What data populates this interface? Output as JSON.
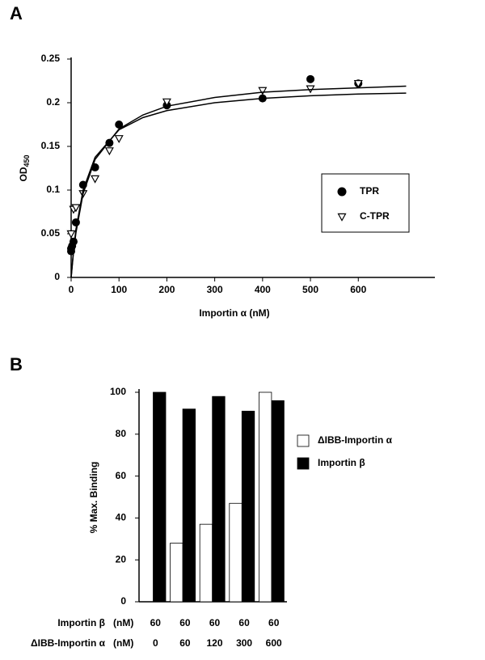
{
  "chart_data": [
    {
      "type": "scatter",
      "panel": "A",
      "xlabel": "Importin α  (nM)",
      "ylabel": "OD",
      "ylabel_sub": "450",
      "xlim": [
        0,
        760
      ],
      "ylim": [
        0,
        0.25
      ],
      "xticks": [
        0,
        100,
        200,
        300,
        400,
        500,
        600
      ],
      "yticks": [
        0,
        0.05,
        0.1,
        0.15,
        0.2,
        0.25
      ],
      "legend": "right",
      "series": [
        {
          "name": "TPR",
          "marker": "circle",
          "color": "#000000",
          "x": [
            0,
            0,
            2,
            5,
            10,
            25,
            50,
            80,
            100,
            200,
            400,
            500,
            600
          ],
          "values": [
            0.03,
            0.033,
            0.036,
            0.041,
            0.063,
            0.106,
            0.126,
            0.154,
            0.175,
            0.197,
            0.205,
            0.227,
            0.222
          ]
        },
        {
          "name": "C-TPR",
          "marker": "triangle",
          "color": "#000000",
          "x": [
            0,
            5,
            10,
            25,
            50,
            80,
            100,
            200,
            400,
            500,
            600
          ],
          "values": [
            0.05,
            0.078,
            0.08,
            0.096,
            0.113,
            0.145,
            0.159,
            0.201,
            0.214,
            0.216,
            0.222
          ]
        },
        {
          "marker": "line",
          "color": "#000000",
          "x": [
            0,
            5,
            10,
            25,
            50,
            100,
            150,
            200,
            300,
            400,
            500,
            600,
            700
          ],
          "values": [
            0,
            0.031,
            0.055,
            0.1,
            0.1375,
            0.169,
            0.183,
            0.191,
            0.2,
            0.205,
            0.208,
            0.21,
            0.211
          ]
        },
        {
          "marker": "line",
          "color": "#000000",
          "x": [
            0,
            5,
            10,
            25,
            50,
            100,
            150,
            200,
            300,
            400,
            500,
            600,
            700
          ],
          "values": [
            0,
            0.029,
            0.051,
            0.096,
            0.135,
            0.17,
            0.186,
            0.196,
            0.206,
            0.212,
            0.215,
            0.217,
            0.219
          ]
        }
      ]
    },
    {
      "type": "bar",
      "panel": "B",
      "ylabel": "% Max. Binding",
      "ylim": [
        0,
        100
      ],
      "yticks": [
        0,
        20,
        40,
        60,
        80,
        100
      ],
      "legend": "right",
      "series": [
        {
          "name": "ΔIBB-Importin α",
          "color": "#ffffff",
          "values": [
            0,
            28,
            37,
            47,
            100
          ]
        },
        {
          "name": "Importin β",
          "color": "#000000",
          "values": [
            100,
            92,
            98,
            91,
            96
          ]
        }
      ],
      "table": {
        "rows": [
          {
            "label": "Importin β",
            "unit": "(nM)",
            "values": [
              60,
              60,
              60,
              60,
              60
            ]
          },
          {
            "label": "ΔIBB-Importin α",
            "unit": "(nM)",
            "values": [
              0,
              60,
              120,
              300,
              600
            ]
          }
        ]
      }
    }
  ]
}
